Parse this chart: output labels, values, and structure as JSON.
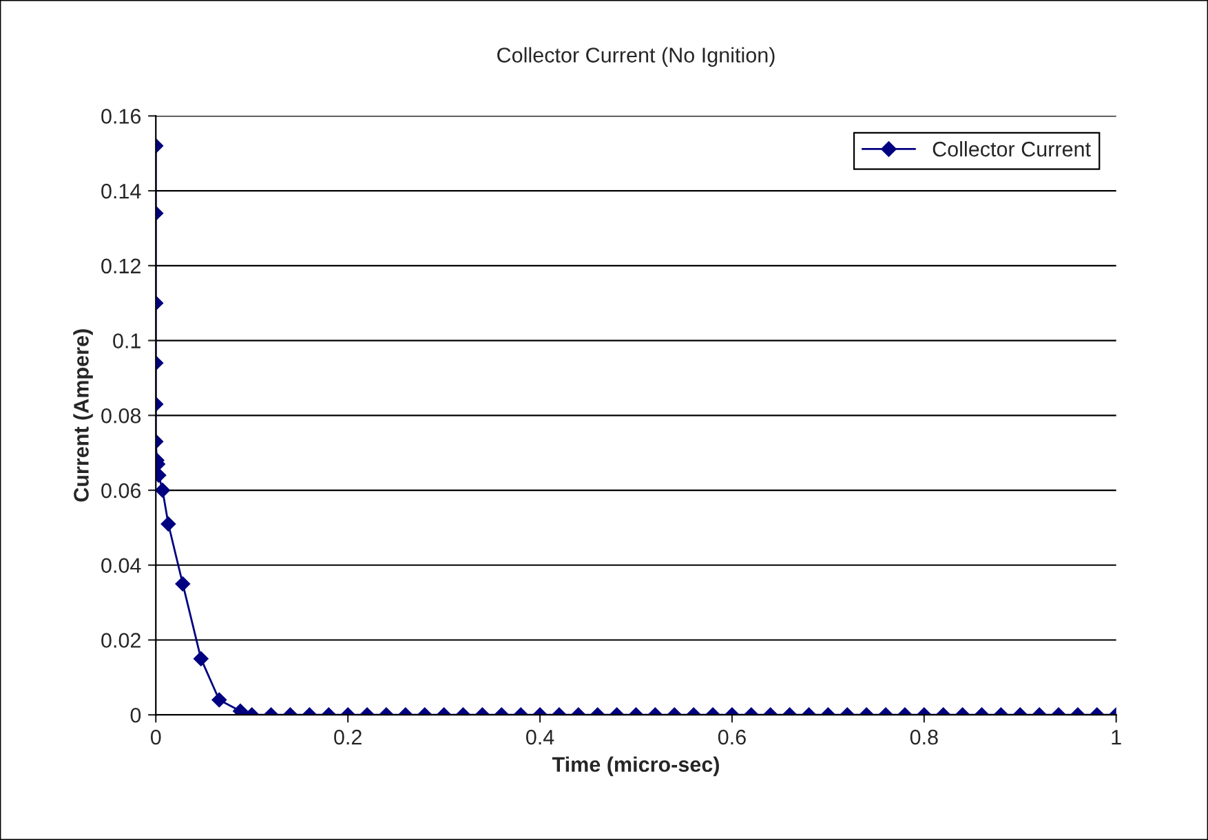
{
  "chart_data": {
    "type": "line",
    "title": "Collector Current (No Ignition)",
    "xlabel": "Time (micro-sec)",
    "ylabel": "Current (Ampere)",
    "series": [
      {
        "name": "Collector Current",
        "color": "#000080",
        "x": [
          0,
          0,
          0,
          0,
          0,
          0,
          0.001,
          0.002,
          0.003,
          0.007,
          0.013,
          0.028,
          0.047,
          0.066,
          0.088,
          0.1,
          0.12,
          0.14,
          0.16,
          0.18,
          0.2,
          0.22,
          0.24,
          0.26,
          0.28,
          0.3,
          0.32,
          0.34,
          0.36,
          0.38,
          0.4,
          0.42,
          0.44,
          0.46,
          0.48,
          0.5,
          0.52,
          0.54,
          0.56,
          0.58,
          0.6,
          0.62,
          0.64,
          0.66,
          0.68,
          0.7,
          0.72,
          0.74,
          0.76,
          0.78,
          0.8,
          0.82,
          0.84,
          0.86,
          0.88,
          0.9,
          0.92,
          0.94,
          0.96,
          0.98,
          1.0
        ],
        "values": [
          0.152,
          0.134,
          0.11,
          0.094,
          0.083,
          0.073,
          0.068,
          0.067,
          0.064,
          0.06,
          0.051,
          0.035,
          0.015,
          0.004,
          0.001,
          0,
          0,
          0,
          0,
          0,
          0,
          0,
          0,
          0,
          0,
          0,
          0,
          0,
          0,
          0,
          0,
          0,
          0,
          0,
          0,
          0,
          0,
          0,
          0,
          0,
          0,
          0,
          0,
          0,
          0,
          0,
          0,
          0,
          0,
          0,
          0,
          0,
          0,
          0,
          0,
          0,
          0,
          0,
          0,
          0,
          0
        ]
      }
    ],
    "xlim": [
      0,
      1
    ],
    "xticks": [
      0,
      0.2,
      0.4,
      0.6,
      0.8,
      1
    ],
    "ylim": [
      0,
      0.16
    ],
    "yticks": [
      0,
      0.02,
      0.04,
      0.06,
      0.08,
      0.1,
      0.12,
      0.14,
      0.16
    ],
    "grid": "y",
    "legend": "top right",
    "marker": "diamond",
    "line_style": "solid"
  }
}
